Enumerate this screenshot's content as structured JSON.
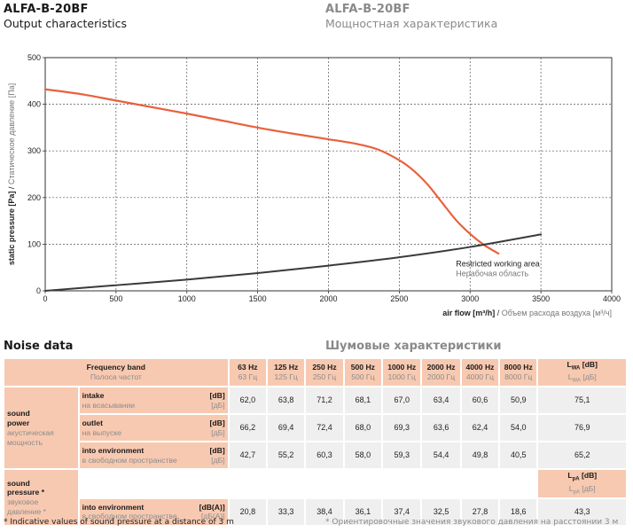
{
  "header": {
    "model_en": "ALFA-B-20BF",
    "subtitle_en": "Output characteristics",
    "model_ru": "ALFA-B-20BF",
    "subtitle_ru": "Мощностная характеристика"
  },
  "chart_data": {
    "type": "line",
    "xlabel_en": "air flow [m³/h]",
    "xlabel_ru": "Объем расхода воздуха [м³/ч]",
    "ylabel_en": "static pressure [Pa]",
    "ylabel_ru": "Статическое давление [Па]",
    "xlim": [
      0,
      4000
    ],
    "ylim": [
      0,
      500
    ],
    "x_ticks": [
      0,
      500,
      1000,
      1500,
      2000,
      2500,
      3000,
      3500,
      4000
    ],
    "y_ticks": [
      0,
      100,
      200,
      300,
      400,
      500
    ],
    "grid": "dashed",
    "series": [
      {
        "color": "#e8613c",
        "x": [
          0,
          250,
          500,
          750,
          1000,
          1250,
          1500,
          1750,
          2000,
          2200,
          2350,
          2500,
          2600,
          2700,
          2800,
          2900,
          3000,
          3100,
          3200
        ],
        "y": [
          432,
          422,
          408,
          394,
          380,
          365,
          350,
          337,
          325,
          315,
          303,
          280,
          258,
          228,
          190,
          152,
          122,
          98,
          80
        ]
      },
      {
        "color": "#3a3a3a",
        "x": [
          0,
          500,
          1000,
          1500,
          2000,
          2500,
          3000,
          3500
        ],
        "y": [
          0,
          12,
          24,
          38,
          54,
          72,
          94,
          121
        ]
      }
    ],
    "annotation_en": "Restricted working area",
    "annotation_ru": "Нерабочая область"
  },
  "noise": {
    "title_en": "Noise data",
    "title_ru": "Шумовые характеристики",
    "freq_label_en": "Frequency band",
    "freq_label_ru": "Полоса частот",
    "bands": [
      {
        "en": "63 Hz",
        "ru": "63 Гц"
      },
      {
        "en": "125 Hz",
        "ru": "125 Гц"
      },
      {
        "en": "250 Hz",
        "ru": "250 Гц"
      },
      {
        "en": "500 Hz",
        "ru": "500 Гц"
      },
      {
        "en": "1000 Hz",
        "ru": "1000 Гц"
      },
      {
        "en": "2000 Hz",
        "ru": "2000 Гц"
      },
      {
        "en": "4000 Hz",
        "ru": "4000 Гц"
      },
      {
        "en": "8000 Hz",
        "ru": "8000 Гц"
      }
    ],
    "lwa_header": "L",
    "lwa_sub": "WA",
    "lwa_unit_en": "[dB]",
    "lwa_unit_ru": "[дБ]",
    "lpa_header": "L",
    "lpa_sub": "pA",
    "lpa_unit_en": "[dB]",
    "lpa_unit_ru": "[дБ]",
    "power_group": {
      "en_1": "sound",
      "en_2": "power",
      "ru_1": "акустическая",
      "ru_2": "мощность"
    },
    "pressure_group": {
      "en_1": "sound",
      "en_2": "pressure *",
      "ru_1": "звуковое",
      "ru_2": "давление *"
    },
    "rows": [
      {
        "label_en": "intake",
        "label_ru": "на всасывании",
        "unit_en": "[dB]",
        "unit_ru": "[дБ]",
        "values": [
          "62,0",
          "63,8",
          "71,2",
          "68,1",
          "67,0",
          "63,4",
          "60,6",
          "50,9"
        ],
        "total": "75,1"
      },
      {
        "label_en": "outlet",
        "label_ru": "на выпуске",
        "unit_en": "[dB]",
        "unit_ru": "[дБ]",
        "values": [
          "66,2",
          "69,4",
          "72,4",
          "68,0",
          "69,3",
          "63,6",
          "62,4",
          "54,0"
        ],
        "total": "76,9"
      },
      {
        "label_en": "into environment",
        "label_ru": "в свободном пространстве",
        "unit_en": "[dB]",
        "unit_ru": "[дБ]",
        "values": [
          "42,7",
          "55,2",
          "60,3",
          "58,0",
          "59,3",
          "54,4",
          "49,8",
          "40,5"
        ],
        "total": "65,2"
      }
    ],
    "pressure_row": {
      "label_en": "into environment",
      "label_ru": "в свободном пространстве",
      "unit_en": "[dB(A)]",
      "unit_ru": "[дБ(A)]",
      "values": [
        "20,8",
        "33,3",
        "38,4",
        "36,1",
        "37,4",
        "32,5",
        "27,8",
        "18,6"
      ],
      "total": "43,3"
    },
    "note_en": "* Indicative values of sound pressure at a distance of 3 m",
    "note_ru": "* Ориентировочные значения звукового давления на расстоянии 3 м"
  }
}
